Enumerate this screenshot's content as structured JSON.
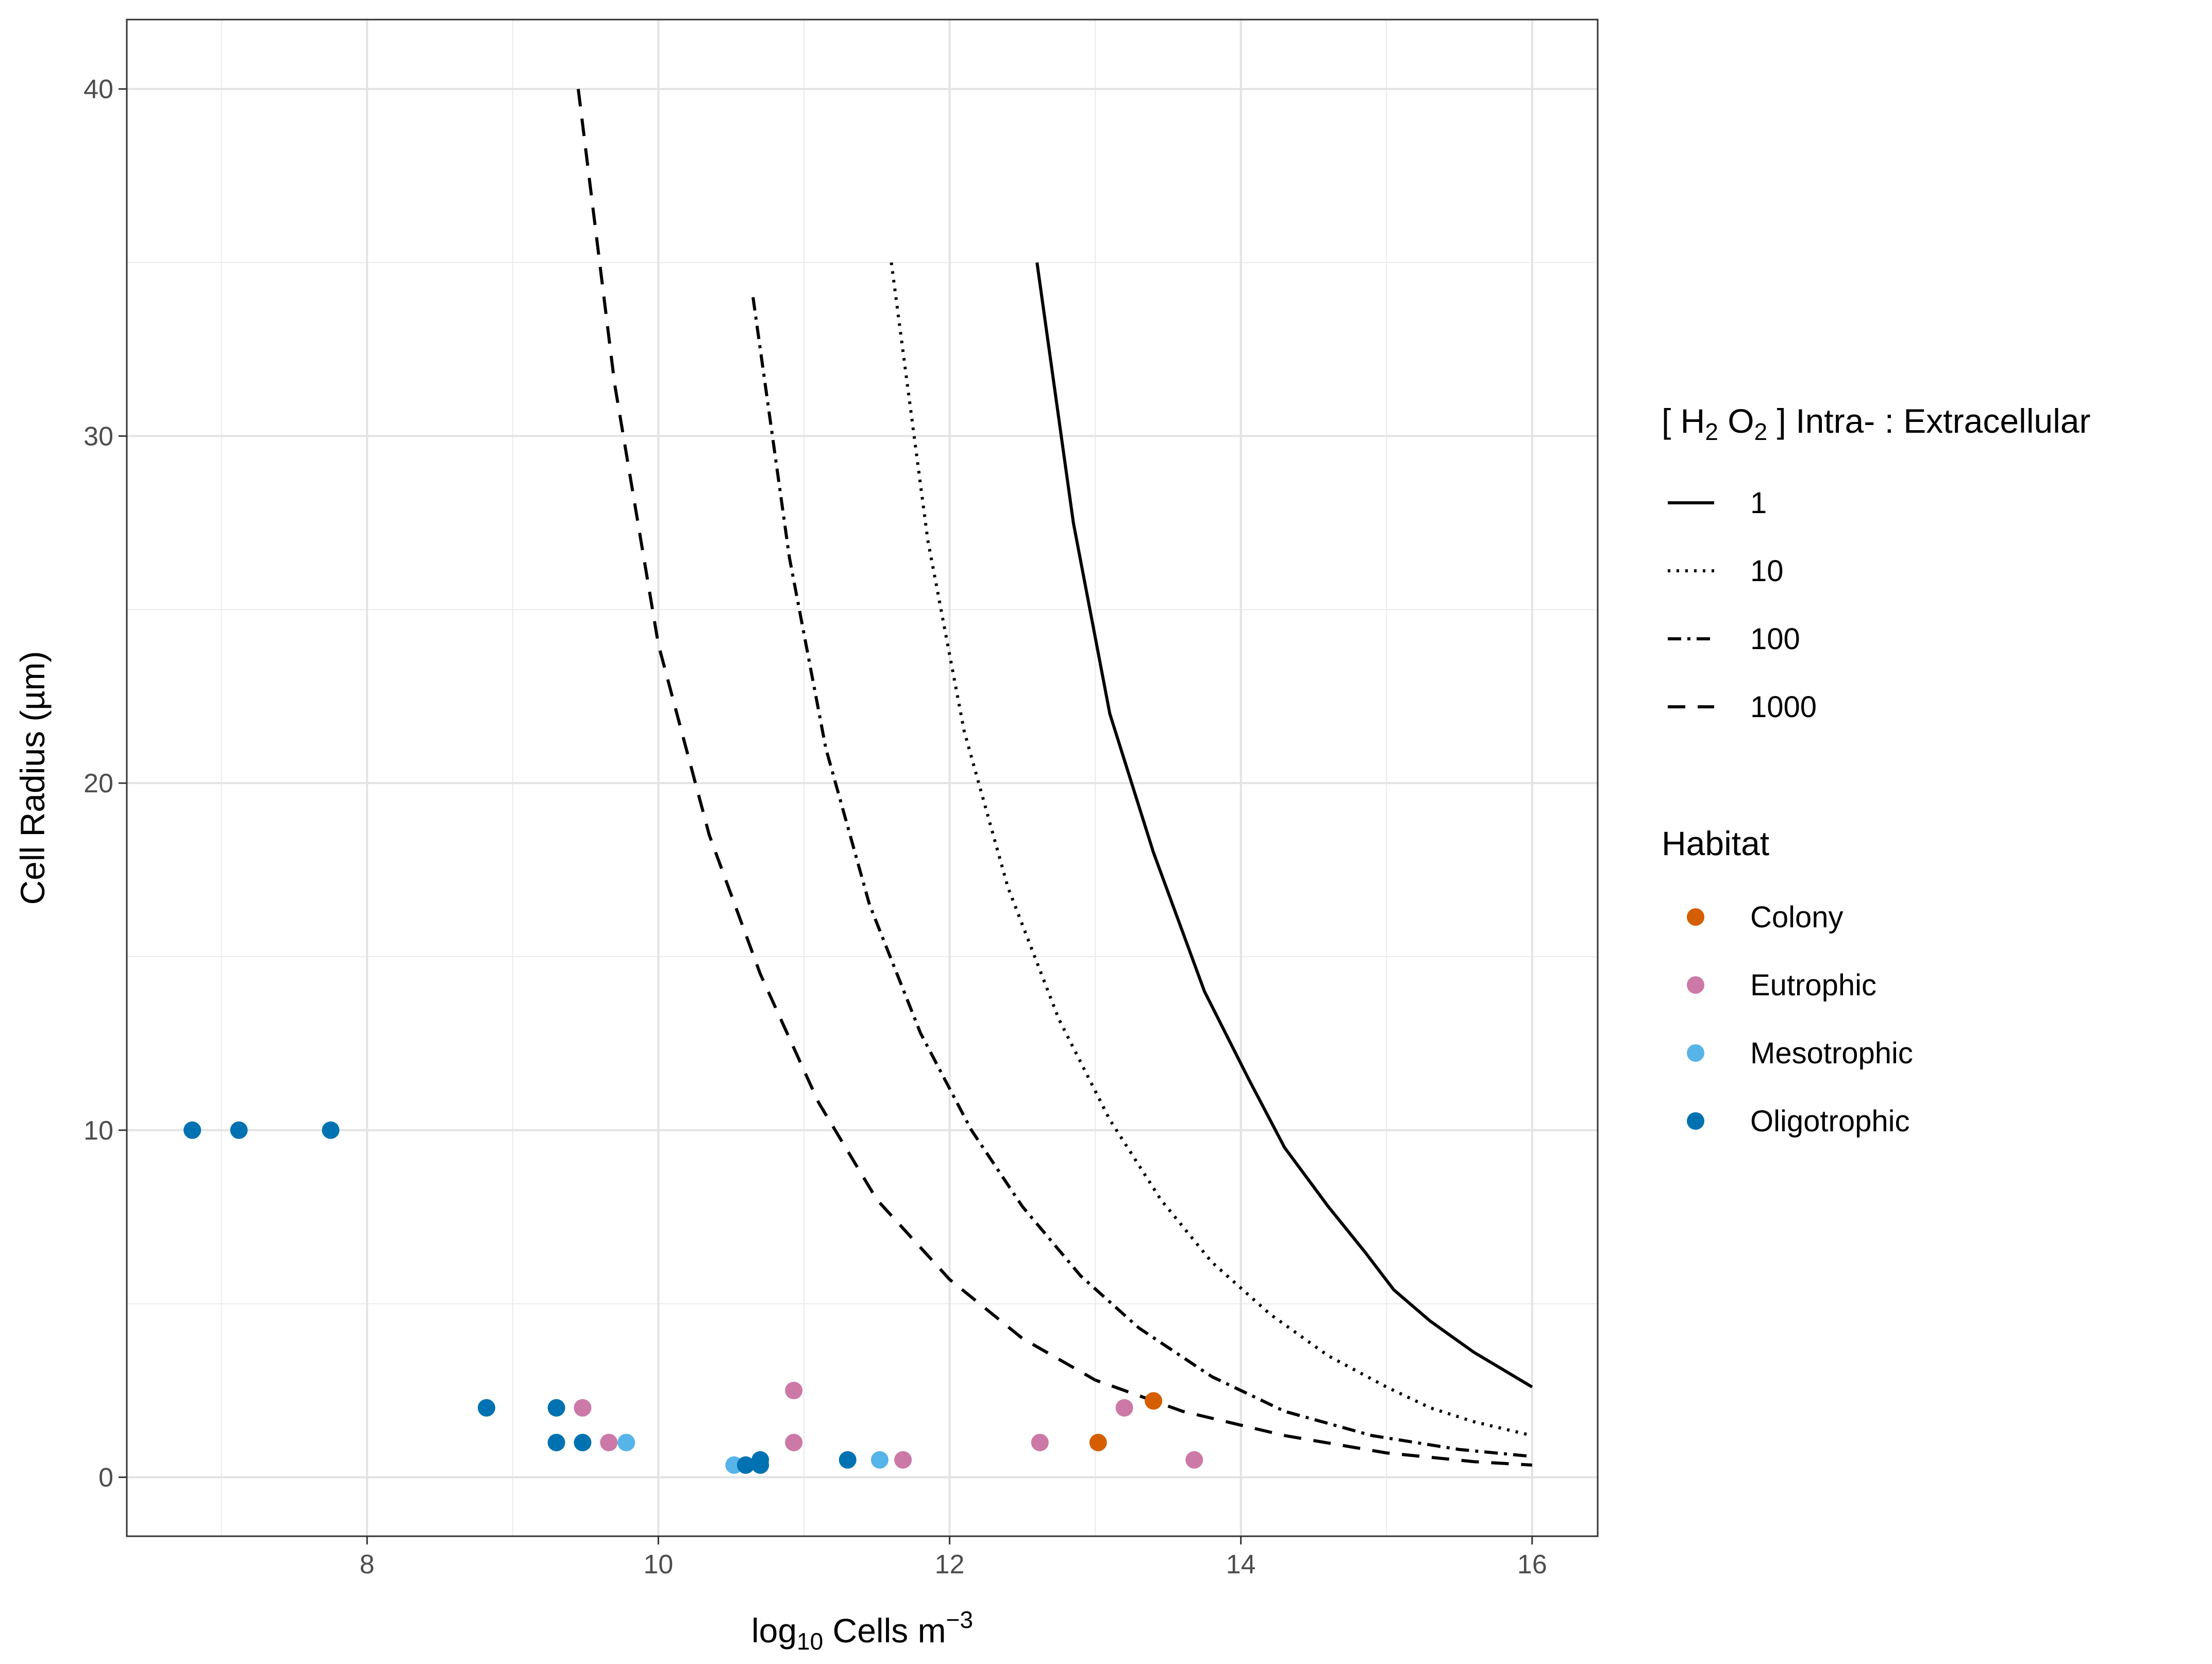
{
  "chart_data": {
    "type": "scatter",
    "title": "",
    "xlabel": {
      "base": "log",
      "sub": "10",
      "mid": " Cells m",
      "sup": "−3"
    },
    "ylabel": "Cell Radius (µm)",
    "xlim": [
      6.35,
      16.45
    ],
    "ylim": [
      -1.7,
      42.0
    ],
    "x_ticks": [
      8,
      10,
      12,
      14,
      16
    ],
    "y_ticks": [
      0,
      10,
      20,
      30,
      40
    ],
    "x_tick_labels": [
      "8",
      "10",
      "12",
      "14",
      "16"
    ],
    "y_tick_labels": [
      "0",
      "10",
      "20",
      "30",
      "40"
    ],
    "grid": true,
    "legend_position": "right",
    "line_legend": {
      "title": {
        "open": "[ H",
        "sub1": "2",
        "mid": " O",
        "sub2": "2",
        "close": " ] Intra- : Extracellular"
      },
      "series": [
        {
          "name": "1",
          "dash": "solid",
          "x": [
            12.6,
            12.85,
            13.1,
            13.4,
            13.75,
            14.05,
            14.3,
            14.6,
            14.85,
            15.05,
            15.3,
            15.6,
            15.8,
            16.0
          ],
          "y": [
            35.0,
            27.5,
            22.0,
            18.0,
            14.0,
            11.5,
            9.5,
            7.8,
            6.5,
            5.4,
            4.5,
            3.6,
            3.1,
            2.6
          ]
        },
        {
          "name": "10",
          "dash": "dotted",
          "x": [
            11.6,
            11.85,
            12.1,
            12.4,
            12.75,
            13.1,
            13.45,
            13.8,
            14.2,
            14.6,
            15.0,
            15.3,
            15.6,
            16.0
          ],
          "y": [
            35.0,
            27.0,
            21.5,
            17.0,
            13.2,
            10.3,
            8.0,
            6.2,
            4.7,
            3.5,
            2.6,
            2.0,
            1.6,
            1.2
          ]
        },
        {
          "name": "100",
          "dash": "dashdot",
          "x": [
            10.65,
            10.9,
            11.15,
            11.45,
            11.8,
            12.15,
            12.5,
            12.9,
            13.3,
            13.8,
            14.3,
            14.9,
            15.5,
            16.0
          ],
          "y": [
            34.0,
            26.5,
            21.0,
            16.5,
            12.8,
            10.0,
            7.8,
            5.8,
            4.3,
            2.9,
            1.9,
            1.2,
            0.8,
            0.6
          ]
        },
        {
          "name": "1000",
          "dash": "dashed",
          "x": [
            9.45,
            9.7,
            10.0,
            10.35,
            10.7,
            11.1,
            11.5,
            12.0,
            12.5,
            13.0,
            13.6,
            14.3,
            15.0,
            15.6,
            16.0
          ],
          "y": [
            40.0,
            31.5,
            24.0,
            18.5,
            14.5,
            10.8,
            8.0,
            5.7,
            4.0,
            2.8,
            1.9,
            1.2,
            0.7,
            0.45,
            0.35
          ]
        }
      ]
    },
    "point_legend": {
      "title": "Habitat",
      "categories": [
        {
          "name": "Colony",
          "color": "#D55E00"
        },
        {
          "name": "Eutrophic",
          "color": "#CC79A7"
        },
        {
          "name": "Mesotrophic",
          "color": "#56B4E9"
        },
        {
          "name": "Oligotrophic",
          "color": "#0072B2"
        }
      ]
    },
    "points": [
      {
        "x": 6.8,
        "y": 10.0,
        "habitat": "Oligotrophic"
      },
      {
        "x": 7.12,
        "y": 10.0,
        "habitat": "Oligotrophic"
      },
      {
        "x": 7.75,
        "y": 10.0,
        "habitat": "Oligotrophic"
      },
      {
        "x": 8.82,
        "y": 2.0,
        "habitat": "Oligotrophic"
      },
      {
        "x": 9.3,
        "y": 2.0,
        "habitat": "Oligotrophic"
      },
      {
        "x": 9.3,
        "y": 1.0,
        "habitat": "Oligotrophic"
      },
      {
        "x": 9.48,
        "y": 1.0,
        "habitat": "Oligotrophic"
      },
      {
        "x": 9.48,
        "y": 2.0,
        "habitat": "Eutrophic"
      },
      {
        "x": 9.66,
        "y": 1.0,
        "habitat": "Eutrophic"
      },
      {
        "x": 9.78,
        "y": 1.0,
        "habitat": "Mesotrophic"
      },
      {
        "x": 10.52,
        "y": 0.35,
        "habitat": "Mesotrophic"
      },
      {
        "x": 10.6,
        "y": 0.35,
        "habitat": "Oligotrophic"
      },
      {
        "x": 10.7,
        "y": 0.5,
        "habitat": "Oligotrophic"
      },
      {
        "x": 10.7,
        "y": 0.35,
        "habitat": "Oligotrophic"
      },
      {
        "x": 10.93,
        "y": 2.5,
        "habitat": "Eutrophic"
      },
      {
        "x": 10.93,
        "y": 1.0,
        "habitat": "Eutrophic"
      },
      {
        "x": 11.3,
        "y": 0.5,
        "habitat": "Oligotrophic"
      },
      {
        "x": 11.52,
        "y": 0.5,
        "habitat": "Mesotrophic"
      },
      {
        "x": 11.68,
        "y": 0.5,
        "habitat": "Eutrophic"
      },
      {
        "x": 12.62,
        "y": 1.0,
        "habitat": "Eutrophic"
      },
      {
        "x": 13.02,
        "y": 1.0,
        "habitat": "Colony"
      },
      {
        "x": 13.2,
        "y": 2.0,
        "habitat": "Eutrophic"
      },
      {
        "x": 13.4,
        "y": 2.2,
        "habitat": "Colony"
      },
      {
        "x": 13.68,
        "y": 0.5,
        "habitat": "Eutrophic"
      }
    ]
  }
}
